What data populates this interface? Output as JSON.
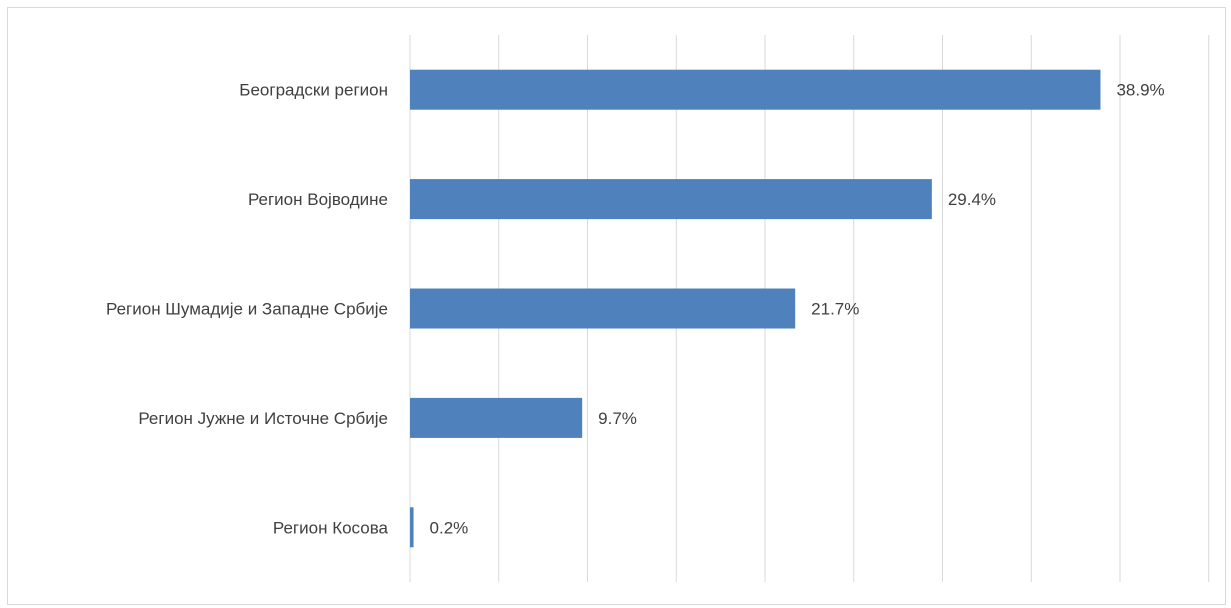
{
  "chart_data": {
    "type": "bar",
    "orientation": "horizontal",
    "categories": [
      "Београдски регион",
      "Регион Војводине",
      "Регион Шумадије и Западне Србије",
      "Регион Јужне и Источне Србије",
      "Регион Косова"
    ],
    "values": [
      38.9,
      29.4,
      21.7,
      9.7,
      0.2
    ],
    "value_labels": [
      "38.9%",
      "29.4%",
      "21.7%",
      "9.7%",
      "0.2%"
    ],
    "unit": "%",
    "title": "",
    "xlabel": "",
    "ylabel": "",
    "xlim": [
      0,
      45
    ],
    "grid": "vertical",
    "legend": "none",
    "bar_color": "#4f81bd",
    "grid_color": "#d9d9d9"
  }
}
